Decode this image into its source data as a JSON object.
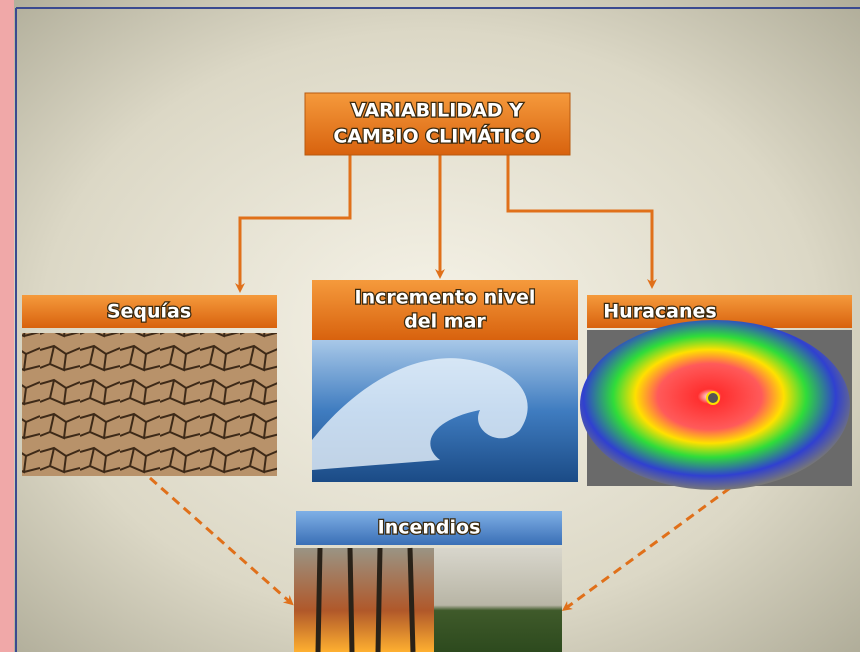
{
  "title": {
    "lines": [
      "VARIABILIDAD Y",
      "CAMBIO CLIMÁTICO"
    ]
  },
  "nodes": [
    {
      "lines": [
        "Sequías"
      ]
    },
    {
      "lines": [
        "Incremento nivel",
        "del mar"
      ]
    },
    {
      "lines": [
        "Huracanes"
      ]
    },
    {
      "lines": [
        "Incendios"
      ]
    }
  ]
}
